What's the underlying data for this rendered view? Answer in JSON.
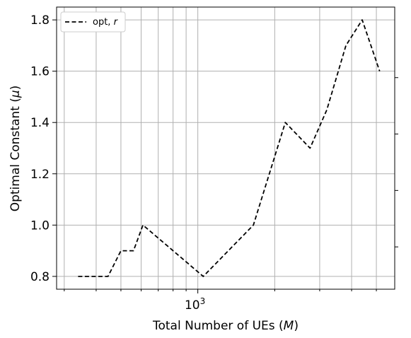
{
  "chart_data": {
    "type": "line",
    "xscale": "log",
    "xlim": [
      280,
      5900
    ],
    "ylim": [
      0.75,
      1.85
    ],
    "xticks": [
      {
        "value": 1000,
        "base": "10",
        "exp": "3"
      }
    ],
    "yticks": [
      0.8,
      1.0,
      1.2,
      1.4,
      1.6,
      1.8
    ],
    "xlabel": "Total Number of UEs (M)",
    "ylabel": "Optimal Constant (μ)",
    "grid": true,
    "legend_position": "top-left",
    "series": [
      {
        "name": "opt, r",
        "color": "#000000",
        "linestyle": "dashed",
        "x": [
          340,
          445,
          500,
          560,
          610,
          1050,
          1650,
          2200,
          2750,
          3200,
          3800,
          4400,
          5150
        ],
        "y": [
          0.8,
          0.8,
          0.9,
          0.9,
          1.0,
          0.8,
          1.0,
          1.4,
          1.3,
          1.45,
          1.7,
          1.8,
          1.6
        ]
      }
    ]
  }
}
